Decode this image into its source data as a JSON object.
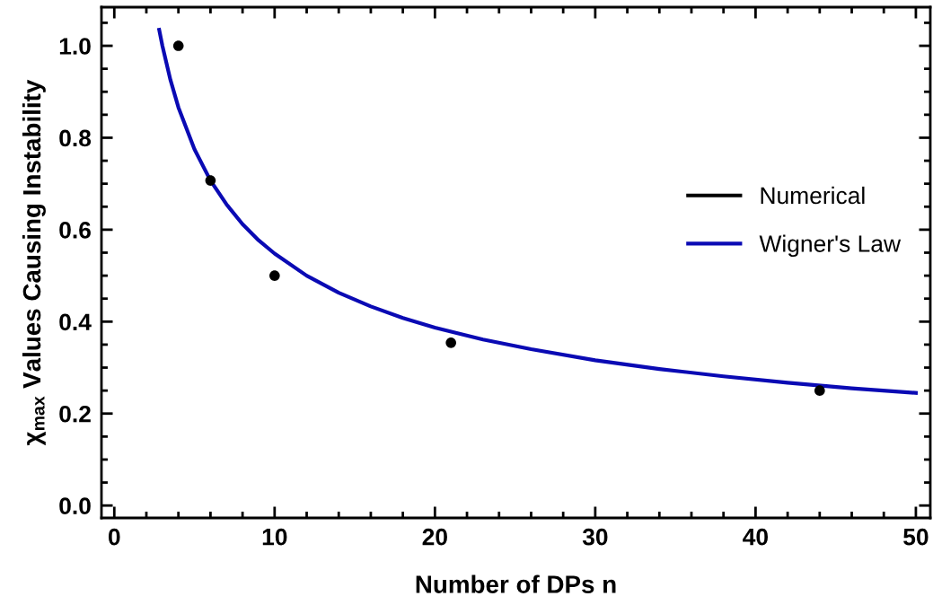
{
  "chart_data": {
    "type": "scatter",
    "xlabel": "Number of DPs n",
    "ylabel": "χ$_{max}$ Values Causing Instability",
    "xlim": [
      -0.8,
      50.9
    ],
    "ylim": [
      -0.027,
      1.084
    ],
    "xticks": [
      0,
      10,
      20,
      30,
      40,
      50
    ],
    "yticks": [
      {
        "value": 0,
        "label": "0.0"
      },
      {
        "value": 0.2,
        "label": "0.2"
      },
      {
        "value": 0.4,
        "label": "0.4"
      },
      {
        "value": 0.6,
        "label": "0.6"
      },
      {
        "value": 0.8,
        "label": "0.8"
      },
      {
        "value": 1,
        "label": "1.0"
      }
    ],
    "grid": false,
    "legend": "right",
    "series": [
      {
        "name": "Numerical",
        "marker": "circle",
        "color": "#000000",
        "x": [
          4,
          6,
          10,
          21,
          44
        ],
        "values": [
          1.0,
          0.707,
          0.5,
          0.354,
          0.25
        ]
      },
      {
        "name": "Wigner's Law",
        "type": "line",
        "color": "#0a0ab4",
        "x": [
          2.8,
          3,
          3.5,
          4,
          5,
          6,
          7,
          8,
          9,
          10,
          12,
          14,
          16,
          18,
          20,
          23,
          26,
          30,
          34,
          38,
          42,
          46,
          50
        ],
        "values": [
          1.035,
          1.0,
          0.926,
          0.866,
          0.775,
          0.707,
          0.655,
          0.612,
          0.577,
          0.548,
          0.5,
          0.463,
          0.433,
          0.408,
          0.387,
          0.361,
          0.34,
          0.316,
          0.297,
          0.281,
          0.267,
          0.255,
          0.245
        ]
      }
    ]
  }
}
